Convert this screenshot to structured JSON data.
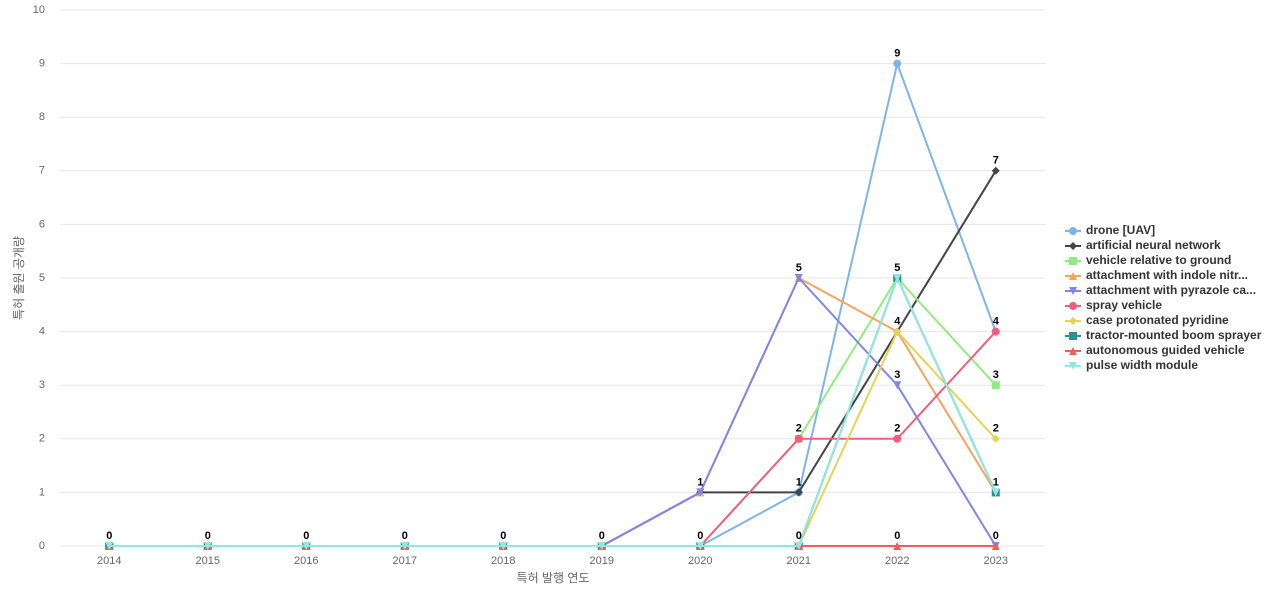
{
  "chart_data": {
    "type": "line",
    "x_label": "특허 발행 연도",
    "y_label": "특허 출원 공개량",
    "categories": [
      "2014",
      "2015",
      "2016",
      "2017",
      "2018",
      "2019",
      "2020",
      "2021",
      "2022",
      "2023"
    ],
    "ylim": [
      0,
      10
    ],
    "yticks": [
      0,
      1,
      2,
      3,
      4,
      5,
      6,
      7,
      8,
      9,
      10
    ],
    "grid": true,
    "legend": "right",
    "series": [
      {
        "name": "drone [UAV]",
        "color": "#7cb5ec",
        "values": [
          0,
          0,
          0,
          0,
          0,
          0,
          0,
          1,
          9,
          4
        ]
      },
      {
        "name": "artificial neural network",
        "color": "#434348",
        "values": [
          0,
          0,
          0,
          0,
          0,
          0,
          1,
          1,
          4,
          7
        ]
      },
      {
        "name": "vehicle relative to ground",
        "color": "#90ed7d",
        "values": [
          0,
          0,
          0,
          0,
          0,
          0,
          0,
          2,
          5,
          3
        ]
      },
      {
        "name": "attachment with indole nitr...",
        "color": "#f7a35c",
        "values": [
          0,
          0,
          0,
          0,
          0,
          0,
          1,
          5,
          4,
          1
        ]
      },
      {
        "name": "attachment with pyrazole ca...",
        "color": "#8085e9",
        "values": [
          0,
          0,
          0,
          0,
          0,
          0,
          1,
          5,
          3,
          0
        ]
      },
      {
        "name": "spray vehicle",
        "color": "#f15c80",
        "values": [
          0,
          0,
          0,
          0,
          0,
          0,
          0,
          2,
          2,
          4
        ]
      },
      {
        "name": "case protonated pyridine",
        "color": "#e4d354",
        "values": [
          0,
          0,
          0,
          0,
          0,
          0,
          0,
          0,
          4,
          2
        ]
      },
      {
        "name": "tractor-mounted boom sprayer",
        "color": "#2b908f",
        "values": [
          0,
          0,
          0,
          0,
          0,
          0,
          0,
          0,
          5,
          1
        ]
      },
      {
        "name": "autonomous guided vehicle",
        "color": "#f45b5b",
        "values": [
          0,
          0,
          0,
          0,
          0,
          0,
          0,
          0,
          0,
          0
        ]
      },
      {
        "name": "pulse width module",
        "color": "#91e8e1",
        "values": [
          0,
          0,
          0,
          0,
          0,
          0,
          0,
          0,
          5,
          1
        ]
      }
    ]
  }
}
